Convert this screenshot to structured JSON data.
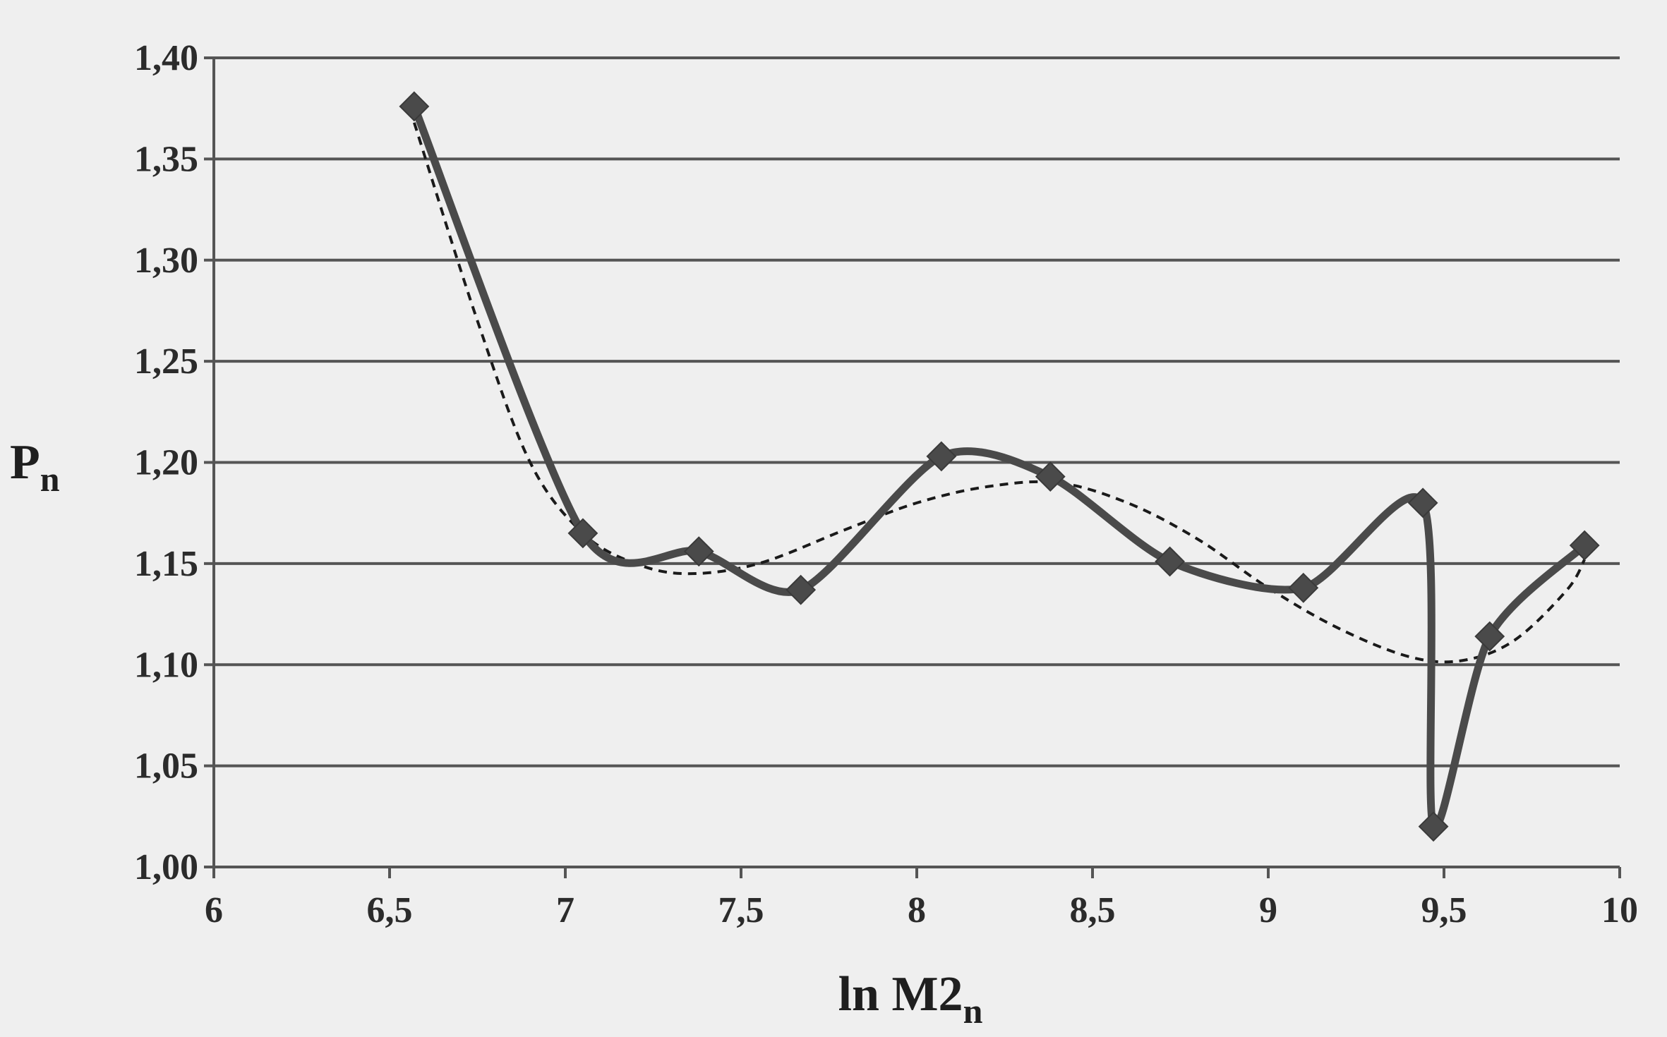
{
  "chart_data": {
    "type": "line",
    "xlabel": {
      "main": "ln M2",
      "sub": "n"
    },
    "ylabel": {
      "main": "P",
      "sub": "n"
    },
    "xlim": [
      6,
      10
    ],
    "ylim": [
      1.0,
      1.4
    ],
    "x_ticks": [
      {
        "value": 6,
        "label": "6"
      },
      {
        "value": 6.5,
        "label": "6,5"
      },
      {
        "value": 7,
        "label": "7"
      },
      {
        "value": 7.5,
        "label": "7,5"
      },
      {
        "value": 8,
        "label": "8"
      },
      {
        "value": 8.5,
        "label": "8,5"
      },
      {
        "value": 9,
        "label": "9"
      },
      {
        "value": 9.5,
        "label": "9,5"
      },
      {
        "value": 10,
        "label": "10"
      }
    ],
    "y_ticks": [
      {
        "value": 1.0,
        "label": "1,00"
      },
      {
        "value": 1.05,
        "label": "1,05"
      },
      {
        "value": 1.1,
        "label": "1,10"
      },
      {
        "value": 1.15,
        "label": "1,15"
      },
      {
        "value": 1.2,
        "label": "1,20"
      },
      {
        "value": 1.25,
        "label": "1,25"
      },
      {
        "value": 1.3,
        "label": "1,30"
      },
      {
        "value": 1.35,
        "label": "1,35"
      },
      {
        "value": 1.4,
        "label": "1,40"
      }
    ],
    "grid": "horizontal",
    "legend": "none",
    "series": [
      {
        "style": "solid-with-diamond-markers",
        "color": "#4a4a4a",
        "points": [
          {
            "x": 6.57,
            "y": 1.376
          },
          {
            "x": 7.05,
            "y": 1.165
          },
          {
            "x": 7.38,
            "y": 1.156
          },
          {
            "x": 7.67,
            "y": 1.137
          },
          {
            "x": 8.07,
            "y": 1.203
          },
          {
            "x": 8.38,
            "y": 1.193
          },
          {
            "x": 8.72,
            "y": 1.151
          },
          {
            "x": 9.1,
            "y": 1.138
          },
          {
            "x": 9.44,
            "y": 1.18
          },
          {
            "x": 9.47,
            "y": 1.02
          },
          {
            "x": 9.63,
            "y": 1.114
          },
          {
            "x": 9.9,
            "y": 1.159
          }
        ]
      },
      {
        "style": "dashed-trend",
        "color": "#1a1a1a",
        "points": [
          {
            "x": 6.57,
            "y": 1.368
          },
          {
            "x": 6.75,
            "y": 1.27
          },
          {
            "x": 6.9,
            "y": 1.2
          },
          {
            "x": 7.05,
            "y": 1.165
          },
          {
            "x": 7.2,
            "y": 1.15
          },
          {
            "x": 7.35,
            "y": 1.145
          },
          {
            "x": 7.55,
            "y": 1.15
          },
          {
            "x": 7.8,
            "y": 1.167
          },
          {
            "x": 8.0,
            "y": 1.18
          },
          {
            "x": 8.2,
            "y": 1.188
          },
          {
            "x": 8.4,
            "y": 1.19
          },
          {
            "x": 8.6,
            "y": 1.18
          },
          {
            "x": 8.8,
            "y": 1.162
          },
          {
            "x": 9.0,
            "y": 1.138
          },
          {
            "x": 9.2,
            "y": 1.118
          },
          {
            "x": 9.4,
            "y": 1.104
          },
          {
            "x": 9.55,
            "y": 1.102
          },
          {
            "x": 9.7,
            "y": 1.112
          },
          {
            "x": 9.85,
            "y": 1.137
          },
          {
            "x": 9.9,
            "y": 1.152
          }
        ]
      }
    ]
  }
}
